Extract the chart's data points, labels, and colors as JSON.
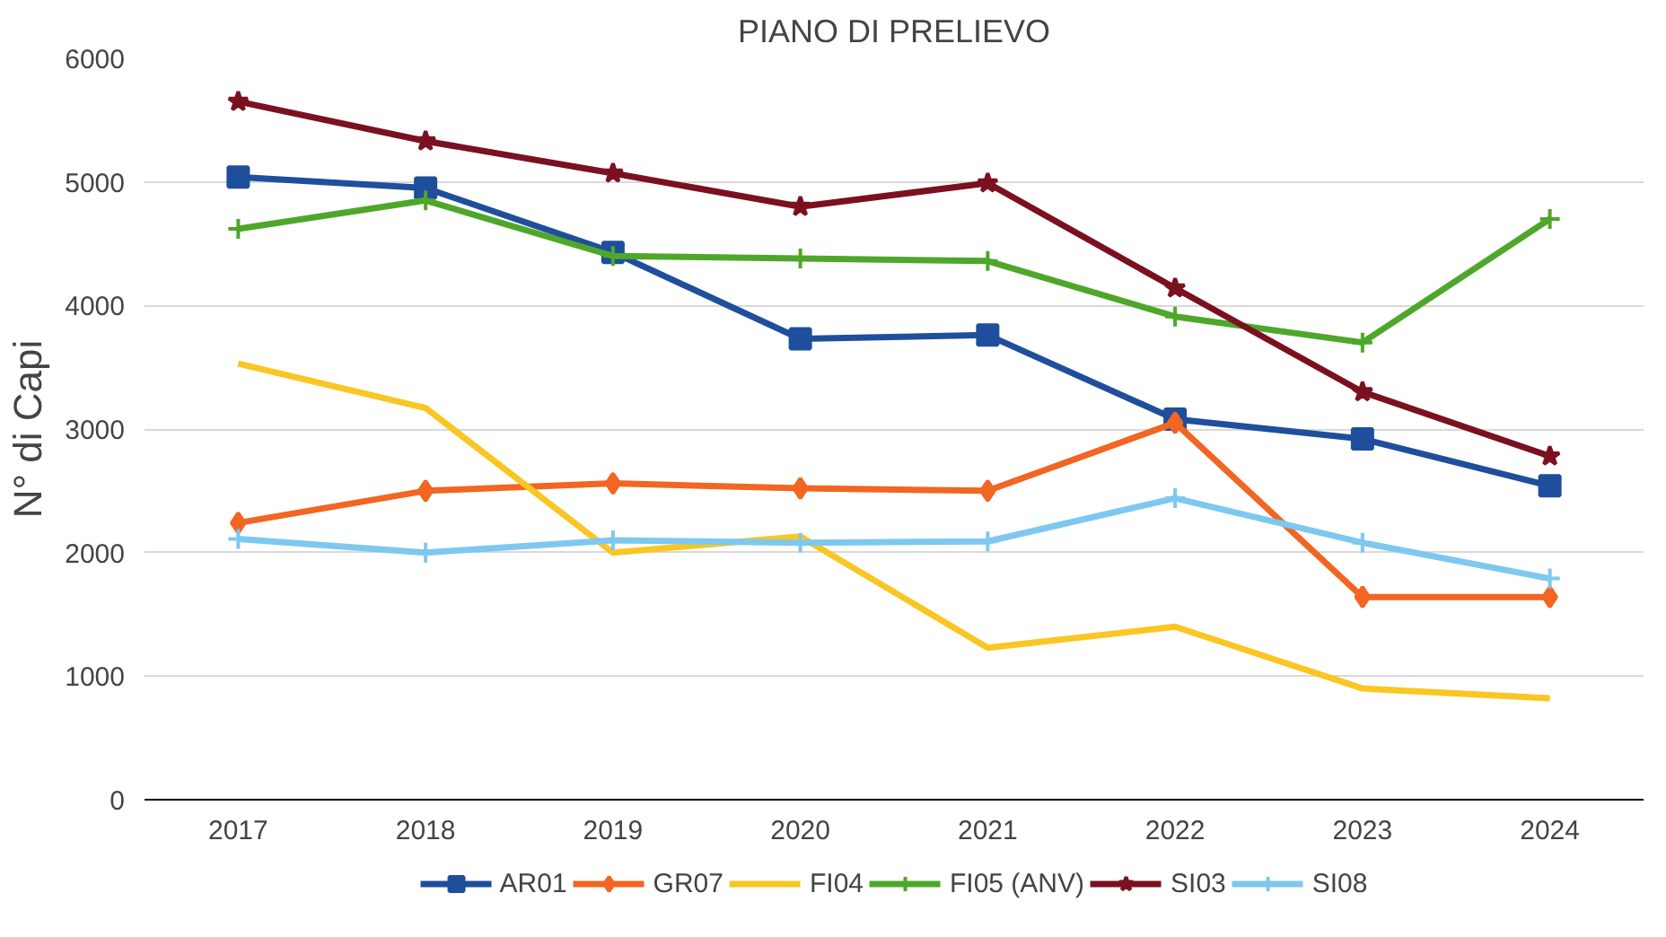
{
  "chart_data": {
    "type": "line",
    "title": "PIANO DI PRELIEVO",
    "ylabel": "N° di Capi",
    "categories": [
      "2017",
      "2018",
      "2019",
      "2020",
      "2021",
      "2022",
      "2023",
      "2024"
    ],
    "ylim": [
      0,
      6000
    ],
    "yticks": [
      0,
      1000,
      2000,
      3000,
      4000,
      5000,
      6000
    ],
    "grid": "y",
    "legend": "bottom",
    "line_style": "solid",
    "series": [
      {
        "name": "AR01",
        "color": "#1f4e9c",
        "marker": "square",
        "values": [
          5040,
          4950,
          4430,
          3730,
          3760,
          3080,
          2920,
          2540
        ]
      },
      {
        "name": "GR07",
        "color": "#f26522",
        "marker": "diamond",
        "values": [
          2240,
          2500,
          2560,
          2520,
          2500,
          3050,
          1640,
          1640
        ]
      },
      {
        "name": "FI04",
        "color": "#f9c623",
        "marker": "none",
        "values": [
          3530,
          3170,
          2000,
          2130,
          1230,
          1400,
          900,
          820
        ]
      },
      {
        "name": "FI05 (ANV)",
        "color": "#4ea72a",
        "marker": "cross",
        "values": [
          4620,
          4850,
          4400,
          4380,
          4360,
          3910,
          3700,
          4700
        ]
      },
      {
        "name": "SI03",
        "color": "#7b1020",
        "marker": "star",
        "values": [
          5650,
          5330,
          5070,
          4800,
          4990,
          4140,
          3300,
          2780
        ]
      },
      {
        "name": "SI08",
        "color": "#7ec8f0",
        "marker": "cross",
        "values": [
          2110,
          2000,
          2100,
          2080,
          2090,
          2440,
          2080,
          1790
        ]
      }
    ]
  }
}
